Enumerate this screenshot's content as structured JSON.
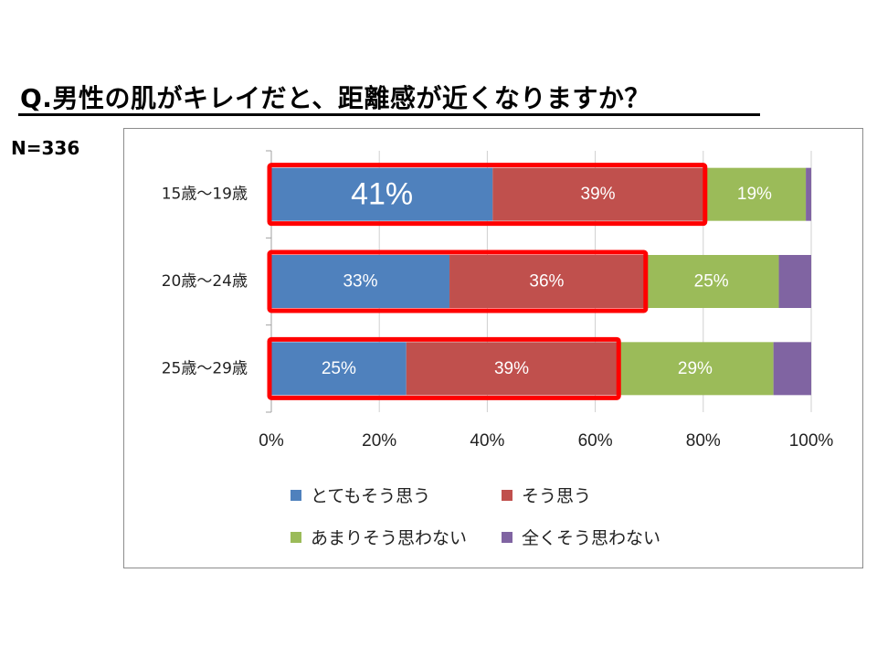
{
  "title": "Q.男性の肌がキレイだと、距離感が近くなりますか？",
  "sample_size": "N=336",
  "colors": {
    "very_much": "#4f81bd",
    "somewhat": "#c0504d",
    "not_much": "#9bbb59",
    "not_at_all": "#8064a2",
    "highlight_box": "#ff0000"
  },
  "chart_data": {
    "type": "bar",
    "orientation": "horizontal",
    "stacked": "percent",
    "categories": [
      "15歳～19歳",
      "20歳～24歳",
      "25歳～29歳"
    ],
    "series": [
      {
        "name": "とてもそう思う",
        "values": [
          41,
          33,
          25
        ],
        "labels": [
          "41%",
          "33%",
          "25%"
        ],
        "color": "#4f81bd"
      },
      {
        "name": "そう思う",
        "values": [
          39,
          36,
          39
        ],
        "labels": [
          "39%",
          "36%",
          "39%"
        ],
        "color": "#c0504d"
      },
      {
        "name": "あまりそう思わない",
        "values": [
          19,
          25,
          29
        ],
        "labels": [
          "19%",
          "25%",
          "29%"
        ],
        "color": "#9bbb59"
      },
      {
        "name": "全くそう思わない",
        "values": [
          1,
          6,
          7
        ],
        "labels": [
          "",
          "",
          ""
        ],
        "color": "#8064a2"
      }
    ],
    "xlim": [
      0,
      100
    ],
    "xticks": [
      "0%",
      "20%",
      "40%",
      "60%",
      "80%",
      "100%"
    ],
    "grid": true,
    "legend_position": "bottom",
    "highlight": "red boxes around the first two series"
  }
}
